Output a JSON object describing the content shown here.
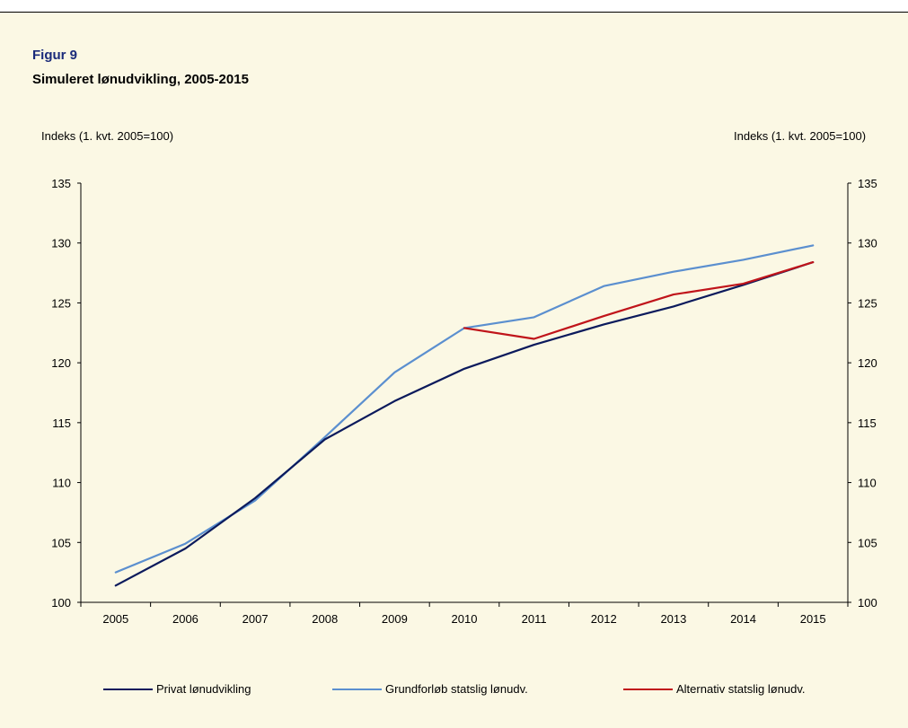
{
  "figure": {
    "label": "Figur 9",
    "title": "Simuleret lønudvikling, 2005-2015",
    "ylabel_left": "Indeks (1. kvt. 2005=100)",
    "ylabel_right": "Indeks (1. kvt. 2005=100)"
  },
  "colors": {
    "background": "#fbf8e4",
    "label": "#1a2a7a",
    "privat": "#0b1a5c",
    "grundforloeb": "#5b8fcf",
    "alternativ": "#c0141a"
  },
  "chart_data": {
    "type": "line",
    "title": "Simuleret lønudvikling, 2005-2015",
    "xlabel": "",
    "ylabel": "Indeks (1. kvt. 2005=100)",
    "ylim": [
      100,
      135
    ],
    "yticks": [
      "100",
      "105",
      "110",
      "115",
      "120",
      "125",
      "130",
      "135"
    ],
    "grid": false,
    "legend_position": "bottom",
    "categories": [
      "2005",
      "2006",
      "2007",
      "2008",
      "2009",
      "2010",
      "2011",
      "2012",
      "2013",
      "2014",
      "2015"
    ],
    "series": [
      {
        "name": "Privat lønudvikling",
        "color": "#0b1a5c",
        "values": [
          101.4,
          104.5,
          108.7,
          113.6,
          116.8,
          119.5,
          121.5,
          123.2,
          124.7,
          126.5,
          128.4
        ]
      },
      {
        "name": "Grundforløb statslig lønudv.",
        "color": "#5b8fcf",
        "values": [
          102.5,
          104.9,
          108.5,
          113.8,
          119.2,
          122.9,
          123.8,
          126.4,
          127.6,
          128.6,
          129.8
        ]
      },
      {
        "name": "Alternativ statslig lønudv.",
        "color": "#c0141a",
        "values": [
          null,
          null,
          null,
          null,
          null,
          122.9,
          122.0,
          123.9,
          125.7,
          126.6,
          128.4
        ]
      }
    ]
  }
}
